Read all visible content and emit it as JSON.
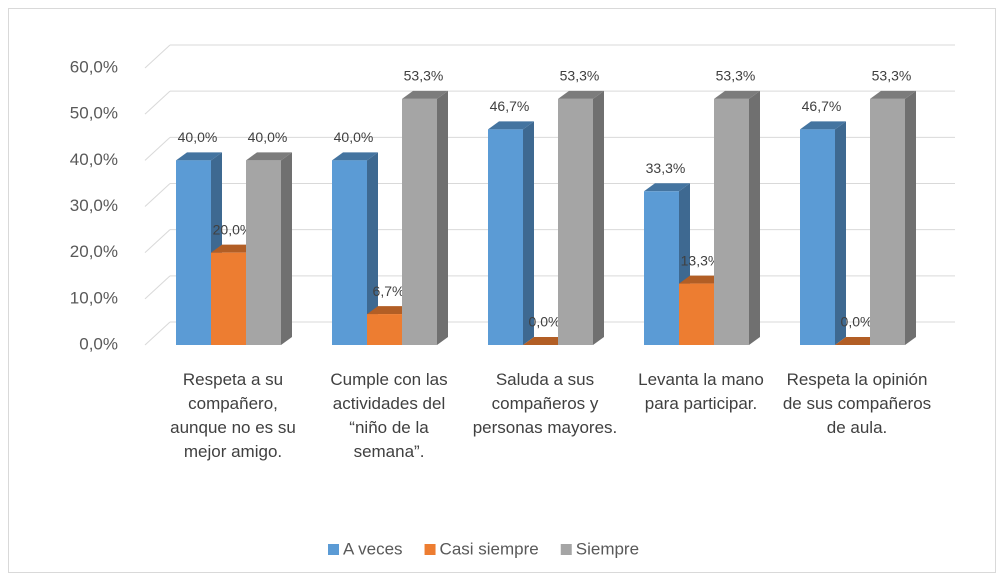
{
  "chart_data": {
    "type": "bar3d",
    "categories": [
      "Respeta a su compañero, aunque no es su mejor amigo.",
      "Cumple con las actividades del “niño de la semana”.",
      "Saluda a sus compañeros y personas mayores.",
      "Levanta la mano para participar.",
      "Respeta la opinión de sus compañeros de aula."
    ],
    "series": [
      {
        "name": "A veces",
        "color": "#5b9bd5",
        "values": [
          40,
          40,
          46.7,
          33.3,
          46.7
        ],
        "value_labels": [
          "40,0%",
          "40,0%",
          "46,7%",
          "33,3%",
          "46,7%"
        ]
      },
      {
        "name": "Casi siempre",
        "color": "#ed7d31",
        "values": [
          20,
          6.7,
          0,
          13.3,
          0
        ],
        "value_labels": [
          "20,0%",
          "6,7%",
          "0,0%",
          "13,3%",
          "0,0%"
        ]
      },
      {
        "name": "Siempre",
        "color": "#a5a5a5",
        "values": [
          40,
          53.3,
          53.3,
          53.3,
          53.3
        ],
        "value_labels": [
          "40,0%",
          "53,3%",
          "53,3%",
          "53,3%",
          "53,3%"
        ]
      }
    ],
    "ylim": [
      0,
      60
    ],
    "yticks": [
      {
        "value": 0,
        "label": "0,0%"
      },
      {
        "value": 10,
        "label": "10,0%"
      },
      {
        "value": 20,
        "label": "20,0%"
      },
      {
        "value": 30,
        "label": "30,0%"
      },
      {
        "value": 40,
        "label": "40,0%"
      },
      {
        "value": 50,
        "label": "50,0%"
      },
      {
        "value": 60,
        "label": "60,0%"
      }
    ],
    "grid": true,
    "legend": "bottom"
  }
}
